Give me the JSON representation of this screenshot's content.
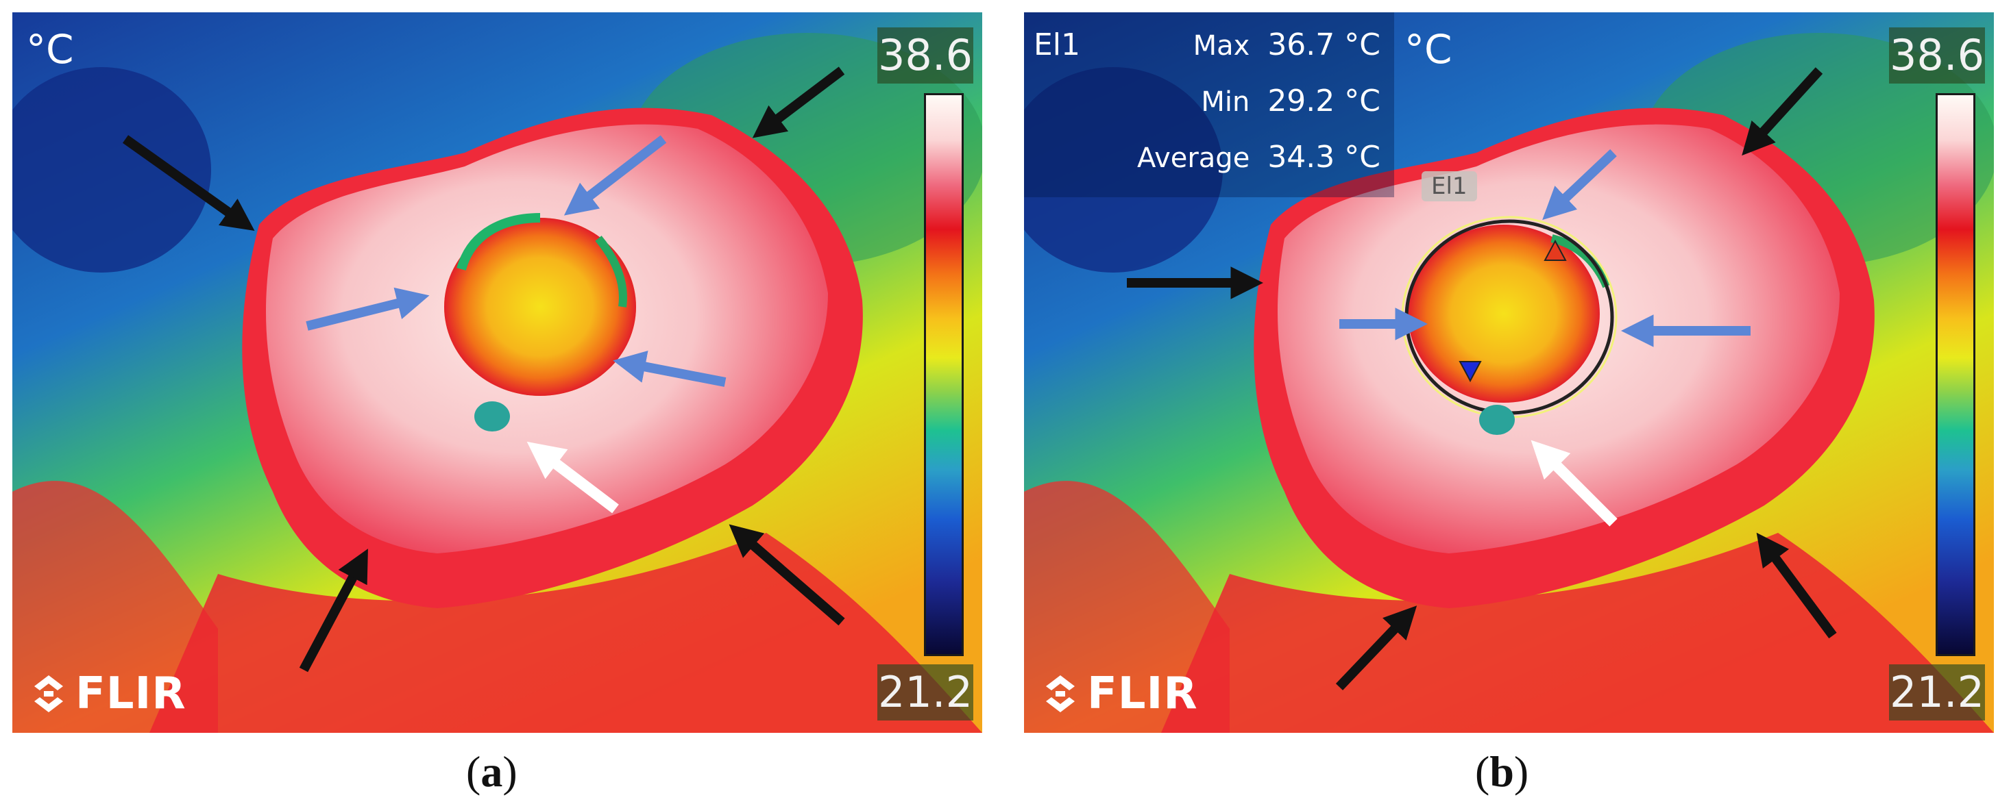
{
  "panels": [
    {
      "id": "a",
      "unit": "°C",
      "scale_max": "38.6",
      "scale_min": "21.2",
      "logo": "FLIR",
      "caption_open": "(",
      "caption_letter": "a",
      "caption_close": ")"
    },
    {
      "id": "b",
      "unit": "°C",
      "scale_max": "38.6",
      "scale_min": "21.2",
      "logo": "FLIR",
      "caption_open": "(",
      "caption_letter": "b",
      "caption_close": ")",
      "measurement": {
        "name": "El1",
        "tag": "El1",
        "rows": [
          {
            "label": "Max",
            "value": "36.7 °C"
          },
          {
            "label": "Min",
            "value": "29.2 °C"
          },
          {
            "label": "Average",
            "value": "34.3 °C"
          }
        ]
      }
    }
  ],
  "colors": {
    "arrow_black": "#111111",
    "arrow_blue": "#5b86d6",
    "arrow_white": "#ffffff",
    "max_marker": "#e53a1e",
    "min_marker": "#1d2bd8"
  },
  "icons": [
    "flir-logo-icon",
    "max-temp-marker-icon",
    "min-temp-marker-icon"
  ]
}
